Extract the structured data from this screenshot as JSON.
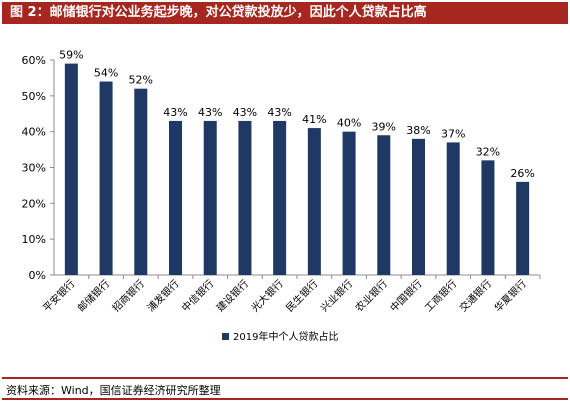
{
  "header": {
    "title": "图 2：邮储银行对公业务起步晚，对公贷款投放少，因此个人贷款占比高"
  },
  "footer": {
    "source": "资料来源：Wind，国信证券经济研究所整理"
  },
  "colors": {
    "bar": "#1f3864",
    "accent": "#a6271f",
    "axis": "#8c8c8c"
  },
  "chart_data": {
    "type": "bar",
    "categories": [
      "平安银行",
      "邮储银行",
      "招商银行",
      "浦发银行",
      "中信银行",
      "建设银行",
      "光大银行",
      "民生银行",
      "兴业银行",
      "农业银行",
      "中国银行",
      "工商银行",
      "交通银行",
      "华夏银行"
    ],
    "series": [
      {
        "name": "2019年中个人贷款占比",
        "values": [
          59,
          54,
          52,
          43,
          43,
          43,
          43,
          41,
          40,
          39,
          38,
          37,
          32,
          26
        ],
        "labels": [
          "59%",
          "54%",
          "52%",
          "43%",
          "43%",
          "43%",
          "43%",
          "41%",
          "40%",
          "39%",
          "38%",
          "37%",
          "32%",
          "26%"
        ]
      }
    ],
    "ylim": [
      0,
      60
    ],
    "yticks": [
      0,
      10,
      20,
      30,
      40,
      50,
      60
    ],
    "ytick_labels": [
      "0%",
      "10%",
      "20%",
      "30%",
      "40%",
      "50%",
      "60%"
    ],
    "grid": false,
    "legend": "bottom"
  }
}
